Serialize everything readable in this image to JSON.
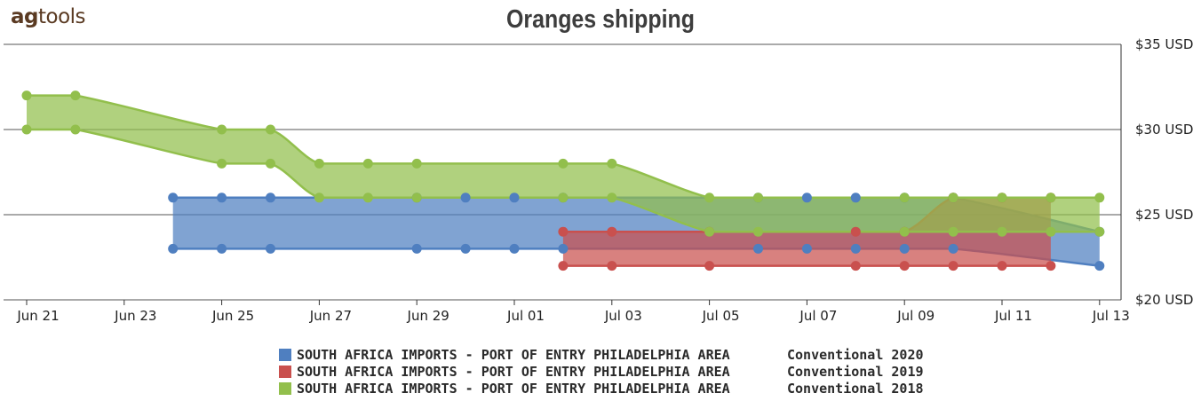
{
  "header": {
    "logo_prefix": "ag",
    "logo_suffix": "tools",
    "title": "Oranges shipping"
  },
  "chart_data": {
    "type": "area",
    "title": "Oranges shipping",
    "xlabel": "",
    "ylabel": "",
    "y_unit_suffix": " USD",
    "ylim": [
      20,
      35
    ],
    "y_ticks": [
      20,
      25,
      30,
      35
    ],
    "y_tick_labels": [
      "$20 USD",
      "$25 USD",
      "$30 USD",
      "$35 USD"
    ],
    "x_ticks": [
      "Jun 21",
      "Jun 23",
      "Jun 25",
      "Jun 27",
      "Jun 29",
      "Jul 01",
      "Jul 03",
      "Jul 05",
      "Jul 07",
      "Jul 09",
      "Jul 11",
      "Jul 13"
    ],
    "grid": true,
    "legend_position": "bottom",
    "series": [
      {
        "name": "SOUTH AFRICA IMPORTS - PORT OF ENTRY PHILADELPHIA AREA",
        "condition": "Conventional 2020",
        "color": "#4f7fc0",
        "points": [
          {
            "x": "Jun 24",
            "low": 23,
            "high": 26
          },
          {
            "x": "Jun 25",
            "low": 23,
            "high": 26
          },
          {
            "x": "Jun 26",
            "low": 23,
            "high": 26
          },
          {
            "x": "Jun 29",
            "low": 23,
            "high": 26
          },
          {
            "x": "Jun 30",
            "low": 23,
            "high": 26
          },
          {
            "x": "Jul 01",
            "low": 23,
            "high": 26
          },
          {
            "x": "Jul 02",
            "low": 23,
            "high": 26
          },
          {
            "x": "Jul 06",
            "low": 23,
            "high": 26
          },
          {
            "x": "Jul 07",
            "low": 23,
            "high": 26
          },
          {
            "x": "Jul 08",
            "low": 23,
            "high": 26
          },
          {
            "x": "Jul 09",
            "low": 23,
            "high": 26
          },
          {
            "x": "Jul 10",
            "low": 23,
            "high": 26
          },
          {
            "x": "Jul 13",
            "low": 22,
            "high": 24
          }
        ]
      },
      {
        "name": "SOUTH AFRICA IMPORTS - PORT OF ENTRY PHILADELPHIA AREA",
        "condition": "Conventional 2019",
        "color": "#c9504e",
        "points": [
          {
            "x": "Jul 02",
            "low": 22,
            "high": 24
          },
          {
            "x": "Jul 03",
            "low": 22,
            "high": 24
          },
          {
            "x": "Jul 05",
            "low": 22,
            "high": 24
          },
          {
            "x": "Jul 08",
            "low": 22,
            "high": 24
          },
          {
            "x": "Jul 09",
            "low": 22,
            "high": 24
          },
          {
            "x": "Jul 10",
            "low": 22,
            "high": 26
          },
          {
            "x": "Jul 11",
            "low": 22,
            "high": 26
          },
          {
            "x": "Jul 12",
            "low": 22,
            "high": 26
          }
        ]
      },
      {
        "name": "SOUTH AFRICA IMPORTS - PORT OF ENTRY PHILADELPHIA AREA",
        "condition": "Conventional 2018",
        "color": "#92bf4c",
        "points": [
          {
            "x": "Jun 21",
            "low": 30,
            "high": 32
          },
          {
            "x": "Jun 22",
            "low": 30,
            "high": 32
          },
          {
            "x": "Jun 25",
            "low": 28,
            "high": 30
          },
          {
            "x": "Jun 26",
            "low": 28,
            "high": 30
          },
          {
            "x": "Jun 27",
            "low": 26,
            "high": 28
          },
          {
            "x": "Jun 28",
            "low": 26,
            "high": 28
          },
          {
            "x": "Jun 29",
            "low": 26,
            "high": 28
          },
          {
            "x": "Jul 02",
            "low": 26,
            "high": 28
          },
          {
            "x": "Jul 03",
            "low": 26,
            "high": 28
          },
          {
            "x": "Jul 05",
            "low": 24,
            "high": 26
          },
          {
            "x": "Jul 06",
            "low": 24,
            "high": 26
          },
          {
            "x": "Jul 09",
            "low": 24,
            "high": 26
          },
          {
            "x": "Jul 10",
            "low": 24,
            "high": 26
          },
          {
            "x": "Jul 11",
            "low": 24,
            "high": 26
          },
          {
            "x": "Jul 12",
            "low": 24,
            "high": 26
          },
          {
            "x": "Jul 13",
            "low": 24,
            "high": 26
          }
        ]
      }
    ]
  }
}
